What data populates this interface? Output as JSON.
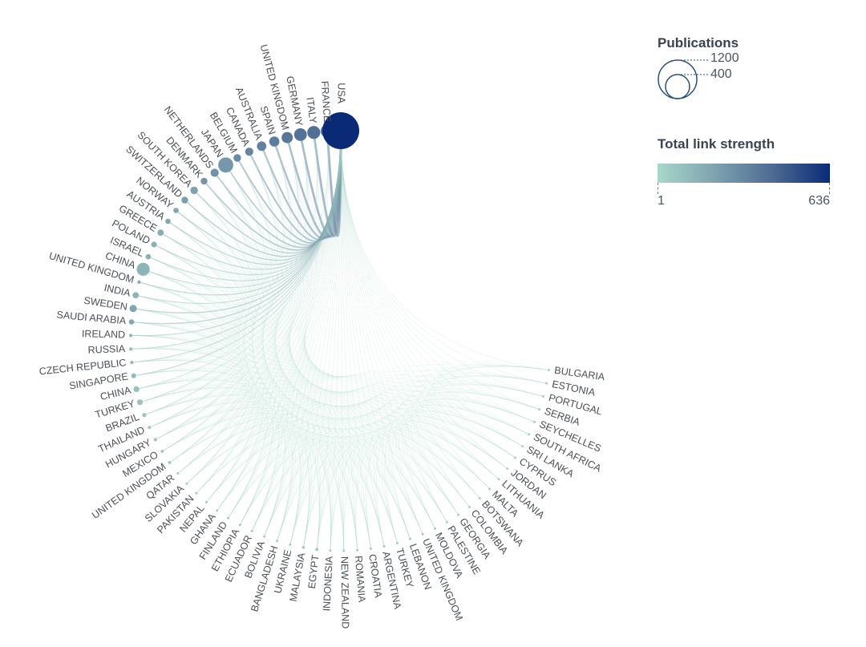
{
  "chart_data": {
    "type": "chord",
    "source_country": "USA",
    "nodes": [
      {
        "label": "USA",
        "publications": 1200,
        "strength": 636
      },
      {
        "label": "FRANCE",
        "publications": 150,
        "strength": 300
      },
      {
        "label": "ITALY",
        "publications": 150,
        "strength": 280
      },
      {
        "label": "GERMANY",
        "publications": 140,
        "strength": 270
      },
      {
        "label": "UNITED KINGDOM",
        "publications": 110,
        "strength": 250
      },
      {
        "label": "SPAIN",
        "publications": 90,
        "strength": 220
      },
      {
        "label": "AUSTRALIA",
        "publications": 80,
        "strength": 200
      },
      {
        "label": "CANADA",
        "publications": 60,
        "strength": 180
      },
      {
        "label": "BELGIUM",
        "publications": 50,
        "strength": 160
      },
      {
        "label": "JAPAN",
        "publications": 200,
        "strength": 120
      },
      {
        "label": "NETHERLANDS",
        "publications": 60,
        "strength": 140
      },
      {
        "label": "DENMARK",
        "publications": 40,
        "strength": 130
      },
      {
        "label": "SOUTH KOREA",
        "publications": 50,
        "strength": 90
      },
      {
        "label": "SWITZERLAND",
        "publications": 40,
        "strength": 100
      },
      {
        "label": "NORWAY",
        "publications": 25,
        "strength": 80
      },
      {
        "label": "AUSTRIA",
        "publications": 25,
        "strength": 70
      },
      {
        "label": "GREECE",
        "publications": 35,
        "strength": 60
      },
      {
        "label": "POLAND",
        "publications": 30,
        "strength": 50
      },
      {
        "label": "ISRAEL",
        "publications": 25,
        "strength": 50
      },
      {
        "label": "CHINA",
        "publications": 150,
        "strength": 40
      },
      {
        "label": "UNITED KINGDOM",
        "publications": 10,
        "strength": 60
      },
      {
        "label": "INDIA",
        "publications": 35,
        "strength": 40
      },
      {
        "label": "SWEDEN",
        "publications": 45,
        "strength": 80
      },
      {
        "label": "SAUDI ARABIA",
        "publications": 25,
        "strength": 70
      },
      {
        "label": "IRELAND",
        "publications": 10,
        "strength": 40
      },
      {
        "label": "RUSSIA",
        "publications": 10,
        "strength": 30
      },
      {
        "label": "CZECH REPUBLIC",
        "publications": 10,
        "strength": 30
      },
      {
        "label": "SINGAPORE",
        "publications": 20,
        "strength": 30
      },
      {
        "label": "CHINA",
        "publications": 30,
        "strength": 20
      },
      {
        "label": "TURKEY",
        "publications": 30,
        "strength": 15
      },
      {
        "label": "BRAZIL",
        "publications": 15,
        "strength": 15
      },
      {
        "label": "THAILAND",
        "publications": 10,
        "strength": 10
      },
      {
        "label": "HUNGARY",
        "publications": 10,
        "strength": 15
      },
      {
        "label": "MEXICO",
        "publications": 8,
        "strength": 10
      },
      {
        "label": "UNITED KINGDOM",
        "publications": 8,
        "strength": 10
      },
      {
        "label": "QATAR",
        "publications": 5,
        "strength": 5
      },
      {
        "label": "SLOVAKIA",
        "publications": 5,
        "strength": 5
      },
      {
        "label": "PAKISTAN",
        "publications": 5,
        "strength": 5
      },
      {
        "label": "NEPAL",
        "publications": 5,
        "strength": 5
      },
      {
        "label": "GHANA",
        "publications": 5,
        "strength": 5
      },
      {
        "label": "FINLAND",
        "publications": 5,
        "strength": 5
      },
      {
        "label": "ETHIOPIA",
        "publications": 5,
        "strength": 5
      },
      {
        "label": "ECUADOR",
        "publications": 5,
        "strength": 5
      },
      {
        "label": "BOLIVIA",
        "publications": 5,
        "strength": 5
      },
      {
        "label": "BANGLADESH",
        "publications": 5,
        "strength": 5
      },
      {
        "label": "UKRAINE",
        "publications": 5,
        "strength": 5
      },
      {
        "label": "MALAYSIA",
        "publications": 8,
        "strength": 5
      },
      {
        "label": "EGYPT",
        "publications": 10,
        "strength": 5
      },
      {
        "label": "INDONESIA",
        "publications": 5,
        "strength": 5
      },
      {
        "label": "NEW ZEALAND",
        "publications": 5,
        "strength": 5
      },
      {
        "label": "ROMANIA",
        "publications": 5,
        "strength": 5
      },
      {
        "label": "CROATIA",
        "publications": 5,
        "strength": 5
      },
      {
        "label": "ARGENTINA",
        "publications": 5,
        "strength": 5
      },
      {
        "label": "TURKEY",
        "publications": 5,
        "strength": 5
      },
      {
        "label": "LEBANON",
        "publications": 5,
        "strength": 5
      },
      {
        "label": "UNITED KINGDOM",
        "publications": 5,
        "strength": 5
      },
      {
        "label": "MOLDOVA",
        "publications": 3,
        "strength": 2
      },
      {
        "label": "PALESTINE",
        "publications": 3,
        "strength": 2
      },
      {
        "label": "GEORGIA",
        "publications": 3,
        "strength": 2
      },
      {
        "label": "COLOMBIA",
        "publications": 3,
        "strength": 2
      },
      {
        "label": "BOTSWANA",
        "publications": 3,
        "strength": 2
      },
      {
        "label": "MALTA",
        "publications": 3,
        "strength": 2
      },
      {
        "label": "LITHUANIA",
        "publications": 3,
        "strength": 2
      },
      {
        "label": "JORDAN",
        "publications": 3,
        "strength": 2
      },
      {
        "label": "CYPRUS",
        "publications": 3,
        "strength": 2
      },
      {
        "label": "SRI LANKA",
        "publications": 3,
        "strength": 2
      },
      {
        "label": "SOUTH AFRICA",
        "publications": 3,
        "strength": 2
      },
      {
        "label": "SEYCHELLES",
        "publications": 3,
        "strength": 2
      },
      {
        "label": "SERBIA",
        "publications": 3,
        "strength": 2
      },
      {
        "label": "PORTUGAL",
        "publications": 3,
        "strength": 2
      },
      {
        "label": "ESTONIA",
        "publications": 3,
        "strength": 2
      },
      {
        "label": "BULGARIA",
        "publications": 3,
        "strength": 2
      }
    ],
    "size_legend": {
      "title": "Publications",
      "values": [
        1200,
        400
      ]
    },
    "color_legend": {
      "title": "Total link strength",
      "min": 1,
      "max": 636,
      "colors": [
        "#a8d8c8",
        "#7fa2b0",
        "#4d6b93",
        "#0a2a78"
      ]
    }
  },
  "legend": {
    "size_title": "Publications",
    "size_big": "1200",
    "size_small": "400",
    "color_title": "Total link strength",
    "color_min": "1",
    "color_max": "636"
  }
}
